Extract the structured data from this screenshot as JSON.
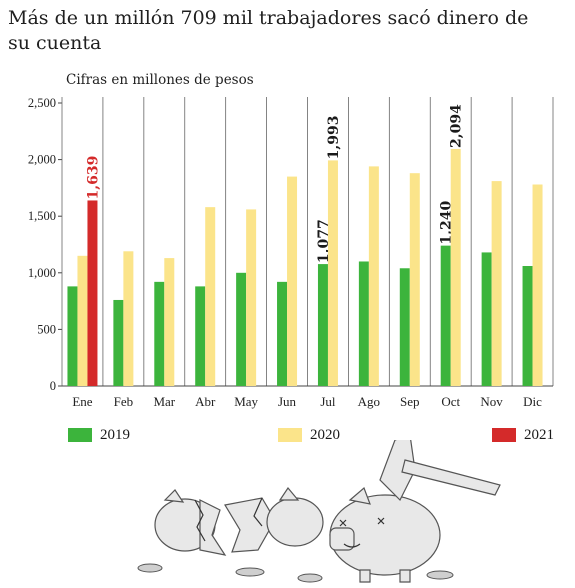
{
  "title": "Más de un millón 709 mil trabajadores sacó dinero de su cuenta",
  "subtitle": "Cifras en millones de pesos",
  "colors": {
    "2019": "#3cb43c",
    "2020": "#fbe48a",
    "2021": "#d42a2a",
    "label_2021": "#d42a2a",
    "label_default": "#1a1a1a"
  },
  "legend": [
    {
      "label": "2019",
      "color": "#3cb43c"
    },
    {
      "label": "2020",
      "color": "#fbe48a"
    },
    {
      "label": "2021",
      "color": "#d42a2a"
    }
  ],
  "chart_data": {
    "type": "bar",
    "categories": [
      "Ene",
      "Feb",
      "Mar",
      "Abr",
      "May",
      "Jun",
      "Jul",
      "Ago",
      "Sep",
      "Oct",
      "Nov",
      "Dic"
    ],
    "series": [
      {
        "name": "2019",
        "values": [
          880,
          760,
          920,
          880,
          1000,
          920,
          1077,
          1100,
          1040,
          1240,
          1180,
          1060
        ]
      },
      {
        "name": "2020",
        "values": [
          1150,
          1190,
          1130,
          1580,
          1560,
          1850,
          1993,
          1940,
          1880,
          2094,
          1810,
          1780
        ]
      },
      {
        "name": "2021",
        "values": [
          1639,
          null,
          null,
          null,
          null,
          null,
          null,
          null,
          null,
          null,
          null,
          null
        ]
      }
    ],
    "yticks": [
      "0",
      "500",
      "1,000",
      "1,500",
      "2,000",
      "2,500"
    ],
    "ylim": [
      0,
      2500
    ],
    "data_labels": [
      {
        "series": "2021",
        "category": "Ene",
        "text": "1,639"
      },
      {
        "series": "2019",
        "category": "Jul",
        "text": "1,077"
      },
      {
        "series": "2020",
        "category": "Jul",
        "text": "1,993"
      },
      {
        "series": "2019",
        "category": "Oct",
        "text": "1,240"
      },
      {
        "series": "2020",
        "category": "Oct",
        "text": "2,094"
      }
    ],
    "grid": false
  }
}
